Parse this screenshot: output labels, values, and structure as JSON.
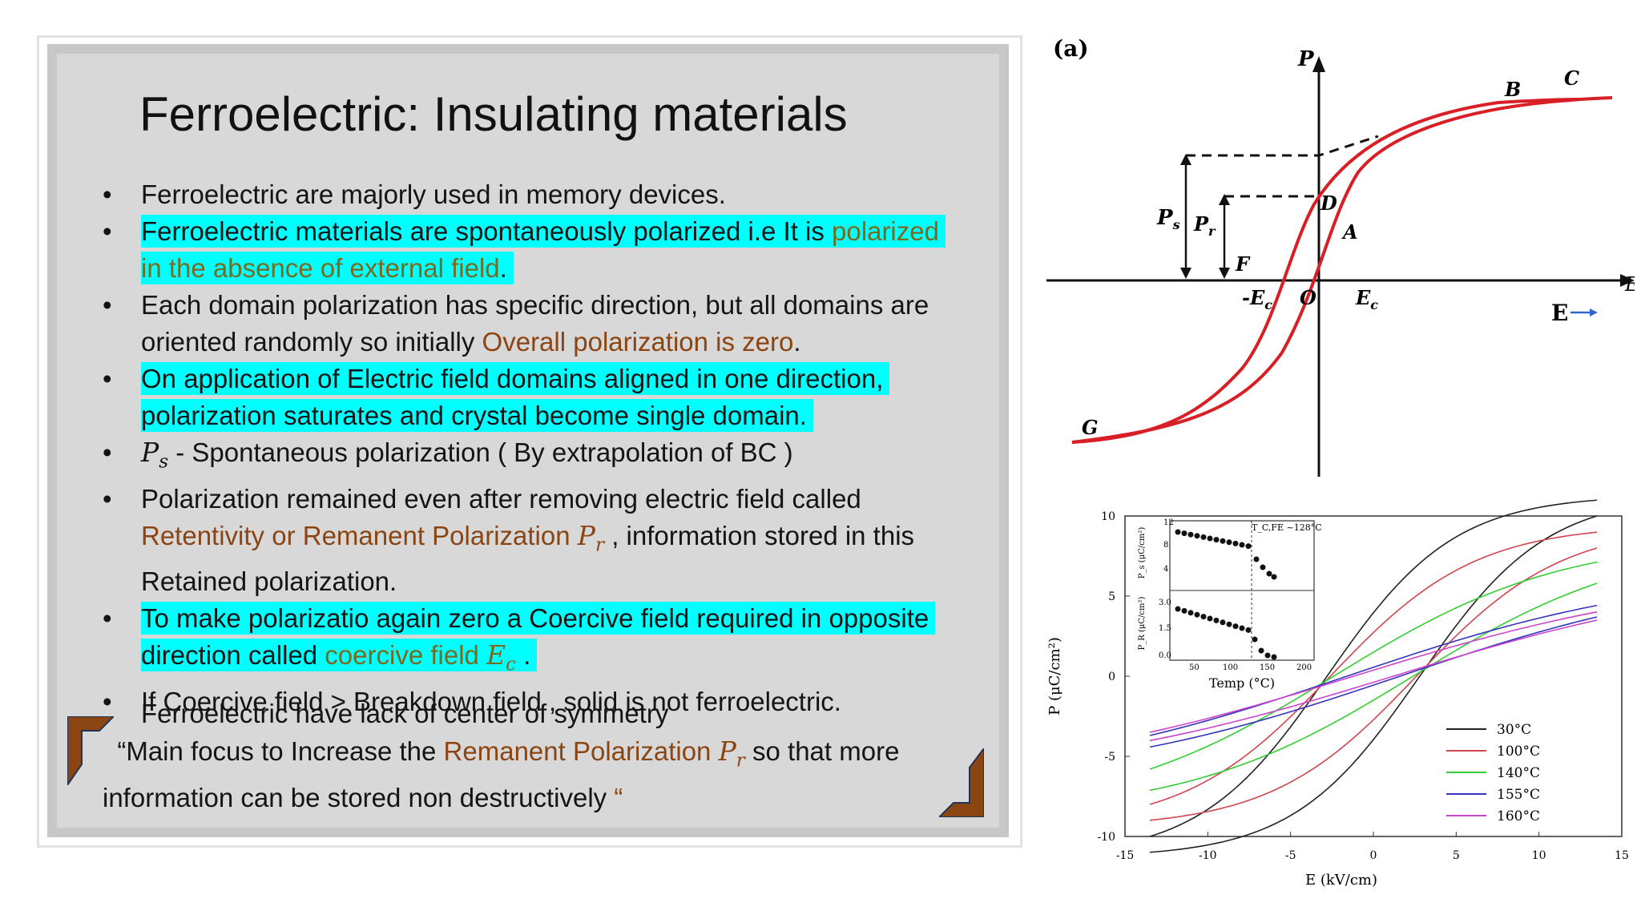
{
  "slide": {
    "title": "Ferroelectric: Insulating materials",
    "bullets": [
      {
        "text": "Ferroelectric are majorly used in memory devices."
      },
      {
        "part1": "Ferroelectric materials are spontaneously polarized i.e It is ",
        "part2": "polarized in the absence of external field",
        "part3": "."
      },
      {
        "part1": "Each domain polarization has specific direction, but all domains are oriented randomly so initially ",
        "part2": "Overall polarization is zero",
        "part3": "."
      },
      {
        "text": "On application of Electric field domains aligned in one direction, polarization saturates and crystal become single domain."
      },
      {
        "sym": "P",
        "sub": "s",
        "text": " - Spontaneous polarization ( By extrapolation of BC )"
      },
      {
        "part1": "Polarization remained even after removing electric field called ",
        "part2": "Retentivity or Remanent Polarization ",
        "sym": "P",
        "sub": "r",
        "part3": " , information stored in this Retained polarization."
      },
      {
        "part1": "To make polarizatio again zero a Coercive field required in opposite direction called ",
        "part2": "coercive field ",
        "sym": "E",
        "sub": "c",
        "part3": " ."
      },
      {
        "text": "If Coercive field > Breakdown field , solid is not ferroelectric."
      }
    ],
    "extra_line": "Ferroelectric have lack of center of symmetry",
    "quote": {
      "open": "“Main focus to Increase the ",
      "highlight": "Remanent Polarization ",
      "sym": "P",
      "sub": "r",
      "rest": " so that more information can be stored non destructively ",
      "close": "“"
    }
  },
  "figure_a": {
    "label": "(a)",
    "axis_y": "P",
    "axis_x": "E",
    "points": {
      "A": "A",
      "B": "B",
      "C": "C",
      "D": "D",
      "F": "F",
      "G": "G",
      "O": "O"
    },
    "labels": {
      "ps": "P",
      "ps_sub": "s",
      "pr": "P",
      "pr_sub": "r",
      "neg_ec": "-E",
      "ec": "E",
      "ec_sub": "c"
    },
    "e_arrow": "E",
    "colors": {
      "loop": "#d81f26",
      "axis": "#111111",
      "arrow": "#3366cc"
    }
  },
  "chart_data": {
    "type": "line",
    "xlabel": "E (kV/cm)",
    "ylabel": "P (μC/cm²)",
    "xlim": [
      -15,
      15
    ],
    "ylim": [
      -10,
      10
    ],
    "xticks": [
      "-15",
      "-10",
      "-5",
      "0",
      "5",
      "10",
      "15"
    ],
    "yticks": [
      "10",
      "5",
      "0",
      "-5",
      "-10"
    ],
    "legend_position": "bottom-right",
    "series": [
      {
        "name": "30°C",
        "color": "#222222",
        "Pmax": 10,
        "Pr": 3.5,
        "Ec": 2.8
      },
      {
        "name": "100°C",
        "color": "#d0454f",
        "Pmax": 8,
        "Pr": 2.3,
        "Ec": 2.6
      },
      {
        "name": "140°C",
        "color": "#33cc33",
        "Pmax": 5.8,
        "Pr": 1.0,
        "Ec": 2.4
      },
      {
        "name": "155°C",
        "color": "#3333bb",
        "Pmax": 3.7,
        "Pr": 0.3,
        "Ec": 1.6
      },
      {
        "name": "160°C",
        "color": "#cc44cc",
        "Pmax": 3.5,
        "Pr": 0.2,
        "Ec": 1.2
      }
    ],
    "inset": {
      "xlabel": "Temp (°C)",
      "xticks": [
        "50",
        "100",
        "150",
        "200"
      ],
      "top_ylabel": "P_s (μC/cm²)",
      "top_yticks": [
        "12",
        "8",
        "4"
      ],
      "bottom_ylabel": "P_R (μC/cm²)",
      "bottom_yticks": [
        "3.0",
        "1.5",
        "0.0"
      ],
      "annotation": "T_C,FE ~128°C"
    }
  }
}
